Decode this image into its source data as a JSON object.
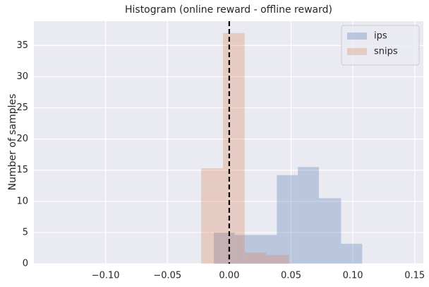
{
  "chart_data": {
    "type": "histogram",
    "title": "Histogram (online reward - offline reward)",
    "ylabel": "Number of samples",
    "series": [
      {
        "name": "ips",
        "color": "#4c72b0",
        "bins": [
          -0.0125,
          0.0045,
          0.0215,
          0.0385,
          0.0555,
          0.0725,
          0.0905,
          0.1075
        ],
        "values": [
          5,
          4.6,
          4.6,
          14.2,
          15.5,
          10.5,
          3.2
        ]
      },
      {
        "name": "snips",
        "color": "#dd8452",
        "bins": [
          -0.0227,
          -0.0051,
          0.0125,
          0.0301,
          0.0483
        ],
        "values": [
          15.3,
          37,
          1.8,
          1.4
        ]
      }
    ],
    "vline": 0,
    "xlim": [
      -0.158,
      0.157
    ],
    "ylim": [
      0,
      38.9
    ],
    "xticks": [
      {
        "value": -0.1,
        "label": "−0.10"
      },
      {
        "value": -0.05,
        "label": "−0.05"
      },
      {
        "value": 0,
        "label": "0.00"
      },
      {
        "value": 0.05,
        "label": "0.05"
      },
      {
        "value": 0.1,
        "label": "0.10"
      },
      {
        "value": 0.15,
        "label": "0.15"
      }
    ],
    "yticks": [
      0,
      5,
      10,
      15,
      20,
      25,
      30,
      35
    ],
    "grid": true,
    "legend": "upper right"
  }
}
